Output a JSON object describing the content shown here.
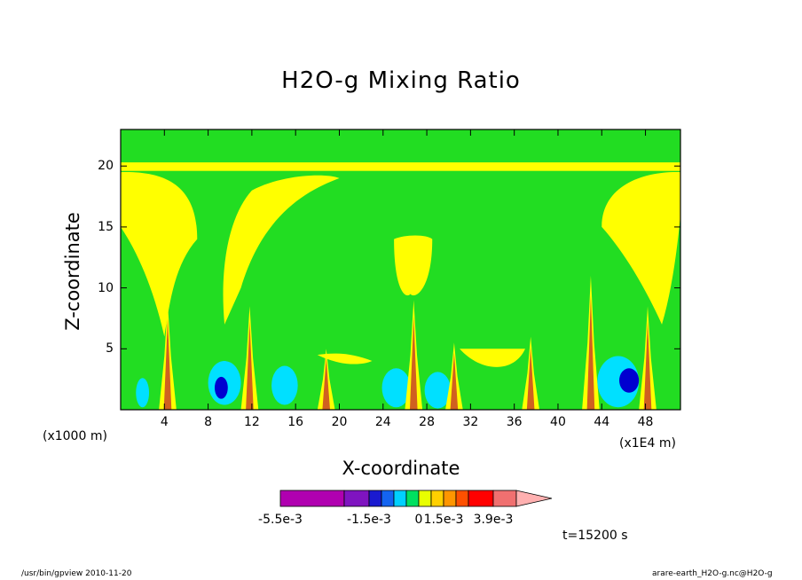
{
  "chart_data": {
    "type": "heatmap",
    "title": "H2O-g Mixing Ratio",
    "xlabel": "X-coordinate",
    "ylabel": "Z-coordinate",
    "x_unit_left": "(x1000 m)",
    "x_unit_right": "(x1E4 m)",
    "x_ticks": [
      "4",
      "8",
      "12",
      "16",
      "20",
      "24",
      "28",
      "32",
      "36",
      "40",
      "44",
      "48"
    ],
    "y_ticks": [
      "5",
      "10",
      "15",
      "20"
    ],
    "xlim": [
      0,
      51.2
    ],
    "ylim": [
      0,
      23
    ],
    "colorbar": {
      "labels": [
        "-5.5e-3",
        "-1.5e-3",
        "0",
        "1.5e-3",
        "3.9e-3"
      ],
      "colors": [
        "#b000b0",
        "#7f14c0",
        "#1a1ad0",
        "#1464f0",
        "#00d0ff",
        "#00e060",
        "#e8ff00",
        "#ffd000",
        "#ff9600",
        "#ff5000",
        "#ff0000",
        "#f07070",
        "#ffb0b0"
      ]
    },
    "time_label": "t=15200 s",
    "background_color": "#22dd22",
    "contour_colors": {
      "positive_weak": "#ffff00",
      "negative_weak": "#00e0ff",
      "negative_strong": "#0000d0",
      "core": "#d06020"
    }
  },
  "footer": {
    "left": "/usr/bin/gpview   2010-11-20",
    "right": "arare-earth_H2O-g.nc@H2O-g"
  }
}
